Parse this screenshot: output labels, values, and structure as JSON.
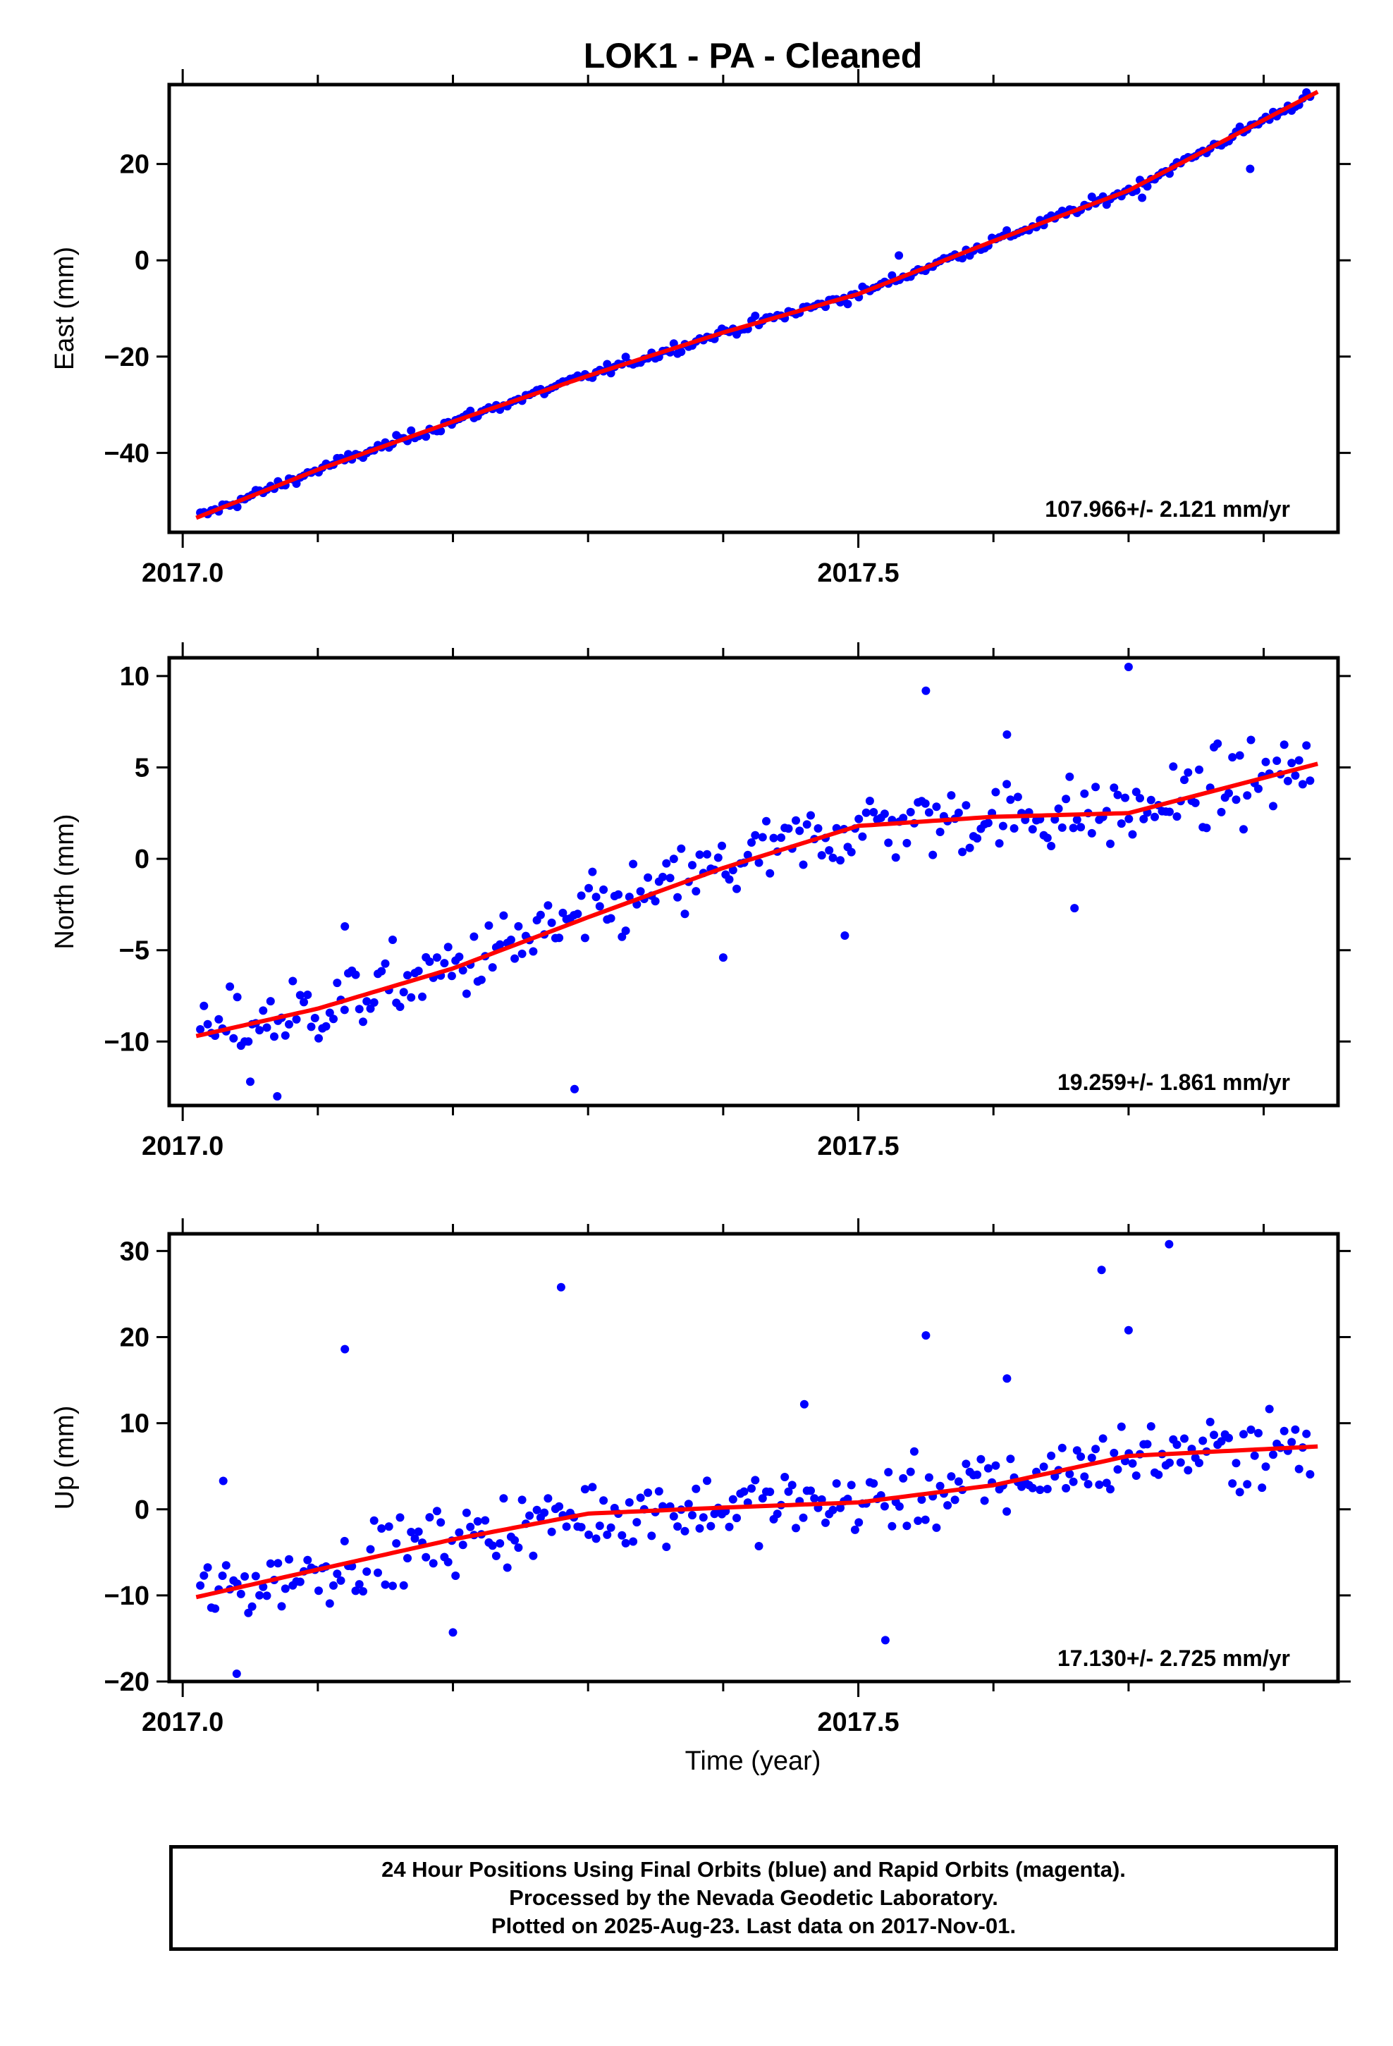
{
  "title": "LOK1  - PA - Cleaned",
  "xlabel": "Time (year)",
  "footer_lines": [
    "24 Hour Positions Using Final Orbits (blue) and Rapid Orbits (magenta).",
    "Processed by the Nevada Geodetic Laboratory.",
    "Plotted on 2025-Aug-23. Last data on 2017-Nov-01."
  ],
  "colors": {
    "points": "#0000ff",
    "fit": "#ff0000",
    "frame": "#000000"
  },
  "chart_data": [
    {
      "type": "scatter",
      "component": "East",
      "ylabel": "East (mm)",
      "rate_label": "107.966+/- 2.121 mm/yr",
      "xlim": [
        2016.99,
        2017.855
      ],
      "ylim": [
        -56.5,
        36.5
      ],
      "xticks": [
        2017.0,
        2017.5
      ],
      "xticklabels": [
        "2017.0",
        "2017.5"
      ],
      "yticks": [
        -40,
        -20,
        0,
        20
      ],
      "yticklabels": [
        "−40",
        "−20",
        "0",
        "20"
      ],
      "fit_x": [
        2017.01,
        2017.1,
        2017.2,
        2017.3,
        2017.4,
        2017.5,
        2017.6,
        2017.7,
        2017.84
      ],
      "fit_y": [
        -53.5,
        -43.5,
        -33.5,
        -24,
        -15,
        -7,
        4,
        14.5,
        35
      ],
      "outliers": [
        [
          2017.53,
          1
        ],
        [
          2017.71,
          13
        ],
        [
          2017.79,
          19
        ]
      ]
    },
    {
      "type": "scatter",
      "component": "North",
      "ylabel": "North (mm)",
      "rate_label": "19.259+/- 1.861 mm/yr",
      "xlim": [
        2016.99,
        2017.855
      ],
      "ylim": [
        -13.5,
        11
      ],
      "xticks": [
        2017.0,
        2017.5
      ],
      "xticklabels": [
        "2017.0",
        "2017.5"
      ],
      "yticks": [
        -10,
        -5,
        0,
        5,
        10
      ],
      "yticklabels": [
        "−10",
        "−5",
        "0",
        "5",
        "10"
      ],
      "fit_x": [
        2017.01,
        2017.1,
        2017.2,
        2017.3,
        2017.4,
        2017.5,
        2017.6,
        2017.7,
        2017.84
      ],
      "fit_y": [
        -9.7,
        -8.2,
        -6,
        -3.2,
        -0.5,
        1.8,
        2.3,
        2.5,
        5.2
      ],
      "outliers": [
        [
          2017.29,
          -12.6
        ],
        [
          2017.55,
          9.2
        ],
        [
          2017.7,
          10.5
        ],
        [
          2017.61,
          6.8
        ],
        [
          2017.07,
          -13
        ],
        [
          2017.12,
          -3.7
        ],
        [
          2017.49,
          -4.2
        ],
        [
          2017.4,
          -5.4
        ],
        [
          2017.66,
          -2.7
        ],
        [
          2017.05,
          -12.2
        ]
      ]
    },
    {
      "type": "scatter",
      "component": "Up",
      "ylabel": "Up (mm)",
      "rate_label": "17.130+/- 2.725 mm/yr",
      "xlim": [
        2016.99,
        2017.855
      ],
      "ylim": [
        -20,
        32
      ],
      "xticks": [
        2017.0,
        2017.5
      ],
      "xticklabels": [
        "2017.0",
        "2017.5"
      ],
      "yticks": [
        -20,
        -10,
        0,
        10,
        20,
        30
      ],
      "yticklabels": [
        "−20",
        "−10",
        "0",
        "10",
        "20",
        "30"
      ],
      "fit_x": [
        2017.01,
        2017.1,
        2017.2,
        2017.3,
        2017.4,
        2017.5,
        2017.6,
        2017.7,
        2017.84
      ],
      "fit_y": [
        -10.2,
        -7,
        -3.5,
        -0.5,
        0.2,
        0.8,
        2.8,
        6.2,
        7.3
      ],
      "outliers": [
        [
          2017.12,
          18.6
        ],
        [
          2017.28,
          25.8
        ],
        [
          2017.55,
          20.2
        ],
        [
          2017.68,
          27.8
        ],
        [
          2017.73,
          30.8
        ],
        [
          2017.7,
          20.8
        ],
        [
          2017.52,
          -15.2
        ],
        [
          2017.04,
          -19.1
        ],
        [
          2017.03,
          3.3
        ],
        [
          2017.2,
          -14.3
        ],
        [
          2017.46,
          12.2
        ],
        [
          2017.61,
          15.2
        ]
      ]
    }
  ]
}
